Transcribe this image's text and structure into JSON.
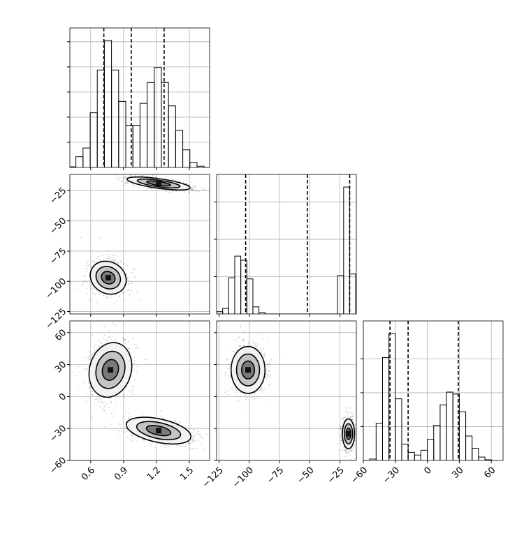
{
  "chart_data": {
    "type": "corner",
    "axes": [
      {
        "lim": [
          0.41,
          1.685
        ],
        "ticks": [
          0.6,
          0.9,
          1.2,
          1.5
        ]
      },
      {
        "lim": [
          -127,
          -11.5
        ],
        "ticks": [
          {
            "value": -125,
            "label": "−125"
          },
          {
            "value": -100,
            "label": "−100"
          },
          {
            "value": -75,
            "label": "−75"
          },
          {
            "value": -50,
            "label": "−50"
          },
          {
            "value": -25,
            "label": "−25"
          }
        ]
      },
      {
        "lim": [
          -60,
          71
        ],
        "ticks": [
          {
            "value": -60,
            "label": "−60"
          },
          {
            "value": -30,
            "label": "−30"
          },
          0,
          30,
          60
        ]
      }
    ],
    "histograms": [
      {
        "bins": [
          0.4,
          0.465,
          0.53,
          0.595,
          0.66,
          0.725,
          0.79,
          0.855,
          0.92,
          0.985,
          1.05,
          1.115,
          1.18,
          1.245,
          1.31,
          1.375,
          1.44,
          1.505,
          1.57,
          1.635,
          1.7
        ],
        "counts": [
          1,
          17,
          31,
          87,
          155,
          202,
          155,
          105,
          67,
          67,
          102,
          135,
          159,
          135,
          98,
          59,
          28,
          8,
          2,
          0
        ],
        "ylim": [
          0,
          222
        ],
        "yticks": [
          40,
          80,
          120,
          160,
          200
        ],
        "quantiles": [
          0.72,
          0.97,
          1.27
        ]
      },
      {
        "bins": [
          -127,
          -122,
          -117,
          -112,
          -107,
          -102,
          -97,
          -92,
          -87,
          -82,
          -77,
          -72,
          -67,
          -62,
          -57,
          -52,
          -47,
          -42,
          -37,
          -32,
          -27,
          -22,
          -17,
          -12
        ],
        "counts": [
          6,
          15,
          97,
          155,
          144,
          94,
          19,
          4,
          0,
          0,
          0,
          0,
          0,
          0,
          0,
          0,
          0,
          0,
          0,
          0,
          103,
          340,
          107
        ],
        "ylim": [
          0,
          374
        ],
        "yticks": [
          100,
          200,
          300
        ],
        "quantiles": [
          -103,
          -52,
          -17
        ]
      },
      {
        "bins": [
          -60,
          -54,
          -48,
          -42,
          -36,
          -30,
          -24,
          -18,
          -12,
          -6,
          0,
          6,
          12,
          18,
          24,
          30,
          36,
          42,
          48,
          54,
          60,
          66
        ],
        "counts": [
          0,
          2,
          55,
          152,
          187,
          91,
          24,
          12,
          8,
          15,
          31,
          52,
          82,
          101,
          98,
          72,
          36,
          18,
          5,
          1,
          0
        ],
        "ylim": [
          0,
          206
        ],
        "yticks": [
          50,
          100,
          150
        ],
        "quantiles": [
          -35,
          -18,
          29
        ]
      }
    ],
    "pairs": [
      {
        "x": 0,
        "y": 1,
        "clusters": [
          {
            "cx": 0.76,
            "cy": -97,
            "rx": 0.17,
            "ry": 13,
            "angle": 30
          },
          {
            "cx": 1.22,
            "cy": -19,
            "rx": 0.29,
            "ry": 4,
            "angle": 8
          }
        ]
      },
      {
        "x": 0,
        "y": 2,
        "clusters": [
          {
            "cx": 0.78,
            "cy": 25,
            "rx": 0.19,
            "ry": 26,
            "angle": 15
          },
          {
            "cx": 1.22,
            "cy": -32,
            "rx": 0.3,
            "ry": 11,
            "angle": 12
          }
        ]
      },
      {
        "x": 1,
        "y": 2,
        "clusters": [
          {
            "cx": -101,
            "cy": 25,
            "rx": 14,
            "ry": 22,
            "angle": 0
          },
          {
            "cx": -18,
            "cy": -35,
            "rx": 5,
            "ry": 14,
            "angle": 0
          }
        ]
      }
    ]
  }
}
